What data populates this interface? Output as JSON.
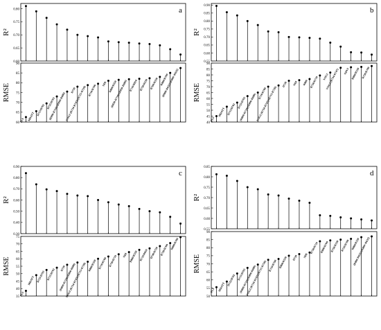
{
  "chart_data": [
    {
      "type": "scatter",
      "panel_label": "a",
      "r2": {
        "ylabel": "R²",
        "ylim": [
          0.6,
          0.82
        ],
        "yticks": [
          "0.60",
          "0.65",
          "0.70",
          "0.75",
          "0.80"
        ],
        "values": [
          0.81,
          0.79,
          0.765,
          0.74,
          0.72,
          0.7,
          0.695,
          0.69,
          0.675,
          0.672,
          0.67,
          0.667,
          0.665,
          0.66,
          0.645,
          0.625
        ]
      },
      "rmse": {
        "ylabel": "RMSE",
        "ylim": [
          60,
          90
        ],
        "yticks": [
          "60",
          "65",
          "70",
          "75",
          "80",
          "85",
          "90"
        ],
        "categories": [
          "PLS",
          "MDATT",
          "D715/D702",
          "D725/D702",
          "(R890-R710)/(R890-R680)",
          "D720",
          "VOG2 (R734-R747)/(R715-R726)",
          "R710/R760",
          "NDI",
          "R860/R550",
          "(R850-R710)/(R850-R680)",
          "R710/R810",
          "R750/R550",
          "R700/R550",
          "R800/R700",
          "(R800-R635)/(R800+R635)"
        ],
        "values": [
          62.5,
          65.5,
          69.5,
          73.0,
          75.5,
          78.0,
          78.8,
          79.5,
          81.0,
          81.5,
          81.8,
          82.0,
          82.3,
          83.0,
          85.0,
          87.5
        ]
      }
    },
    {
      "type": "scatter",
      "panel_label": "b",
      "r2": {
        "ylabel": "R²",
        "ylim": [
          0.55,
          0.91
        ],
        "yticks": [
          "0.55",
          "0.60",
          "0.65",
          "0.70",
          "0.75",
          "0.80",
          "0.85",
          "0.90"
        ],
        "values": [
          0.895,
          0.855,
          0.835,
          0.8,
          0.775,
          0.735,
          0.73,
          0.7,
          0.698,
          0.695,
          0.69,
          0.665,
          0.64,
          0.605,
          0.603,
          0.59
        ]
      },
      "rmse": {
        "ylabel": "RMSE",
        "ylim": [
          40,
          90
        ],
        "yticks": [
          "40",
          "45",
          "50",
          "55",
          "60",
          "65",
          "70",
          "75",
          "80",
          "85",
          "90"
        ],
        "categories": [
          "PLS",
          "MDATT",
          "D715/D702",
          "D725/D702",
          "(R890-R710)/(R890-R680)",
          "R710/R760",
          "VOG2 (R734-R747)/(R715-R726)",
          "D720",
          "NDI",
          "R860",
          "R750/R710",
          "VOG1",
          "VOG2 (R734-R747)",
          "NDVI",
          "R860/R550",
          "R750/R700"
        ],
        "values": [
          45.0,
          53.0,
          56.5,
          62.0,
          65.0,
          70.0,
          71.0,
          75.0,
          75.5,
          76.5,
          79.5,
          82.0,
          86.0,
          86.5,
          86.8,
          87.5
        ]
      }
    },
    {
      "type": "scatter",
      "panel_label": "c",
      "r2": {
        "ylabel": "R²",
        "ylim": [
          0.3,
          0.9
        ],
        "yticks": [
          "0.30",
          "0.40",
          "0.50",
          "0.60",
          "0.70",
          "0.80",
          "0.90"
        ],
        "values": [
          0.84,
          0.74,
          0.695,
          0.68,
          0.655,
          0.64,
          0.635,
          0.6,
          0.58,
          0.56,
          0.545,
          0.52,
          0.5,
          0.49,
          0.45,
          0.39
        ]
      },
      "rmse": {
        "ylabel": "RMSE",
        "ylim": [
          35,
          75
        ],
        "yticks": [
          "35",
          "40",
          "45",
          "50",
          "55",
          "60",
          "65",
          "70",
          "75"
        ],
        "categories": [
          "PLS",
          "MDATT",
          "D725/D702",
          "D715/D702",
          "D720",
          "(R890-R710)/(R890-R680)",
          "VOG2 (R734-R747)/(R715-R726)",
          "R860/R550",
          "R710/R760",
          "R750/R710",
          "NDI",
          "R860/R550",
          "R710/R810",
          "D740/D720",
          "R750/R700",
          "R800/R700"
        ],
        "values": [
          38.5,
          49.0,
          52.5,
          54.0,
          56.0,
          57.5,
          58.0,
          60.0,
          61.5,
          63.0,
          64.5,
          66.0,
          67.0,
          68.5,
          70.5,
          74.5
        ]
      }
    },
    {
      "type": "scatter",
      "panel_label": "d",
      "r2": {
        "ylabel": "R²",
        "ylim": [
          0.55,
          0.85
        ],
        "yticks": [
          "0.55",
          "0.60",
          "0.65",
          "0.70",
          "0.75",
          "0.80",
          "0.85"
        ],
        "values": [
          0.812,
          0.805,
          0.78,
          0.75,
          0.74,
          0.715,
          0.71,
          0.695,
          0.685,
          0.675,
          0.615,
          0.612,
          0.605,
          0.6,
          0.595,
          0.59
        ]
      },
      "rmse": {
        "ylabel": "RMSE",
        "ylim": [
          50,
          90
        ],
        "yticks": [
          "50",
          "55",
          "60",
          "65",
          "70",
          "75",
          "80",
          "85",
          "90"
        ],
        "categories": [
          "PLS",
          "MDATT",
          "D725/D702",
          "D715/D702",
          "(R890-R710)/(R890-R680)",
          "VOG2 (R734-R747)/(R715-R726)",
          "R710/R760",
          "R860/R550",
          "D720",
          "NDI",
          "R750/R710",
          "R800/R700",
          "R750/R550",
          "R750/R700",
          "R860/R550",
          "(R800-R635)/(R800+R635)"
        ],
        "values": [
          55.5,
          59.0,
          64.0,
          67.5,
          69.5,
          72.5,
          73.0,
          75.0,
          76.0,
          77.0,
          84.0,
          84.5,
          85.0,
          85.5,
          86.5,
          87.0
        ]
      }
    }
  ]
}
